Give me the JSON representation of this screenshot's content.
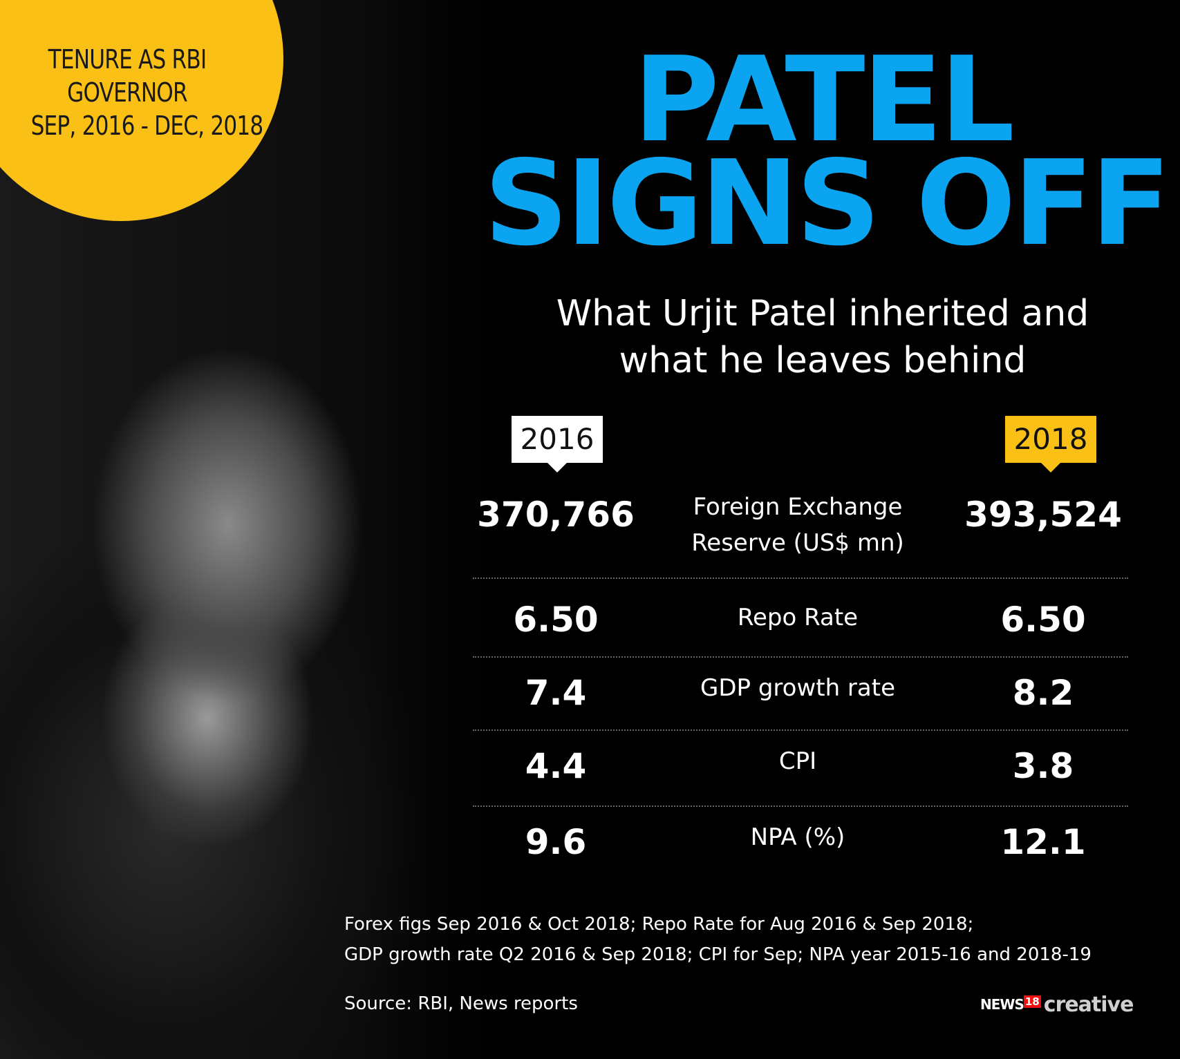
{
  "tenure": {
    "lines": [
      "TENURE AS RBI",
      "GOVERNOR",
      "SEP, 2016 - DEC, 2018"
    ]
  },
  "headline": {
    "line1": "PATEL",
    "line2": "SIGNS OFF"
  },
  "subhead": {
    "line1": "What Urjit Patel inherited and",
    "line2": "what he leaves behind"
  },
  "years": {
    "left": "2016",
    "right": "2018"
  },
  "rows": [
    {
      "label_line1": "Foreign Exchange",
      "label_line2": "Reserve (US$ mn)",
      "v2016": "370,766",
      "v2018": "393,524"
    },
    {
      "label_line1": "Repo Rate",
      "label_line2": "",
      "v2016": "6.50",
      "v2018": "6.50"
    },
    {
      "label_line1": "GDP growth rate",
      "label_line2": "",
      "v2016": "7.4",
      "v2018": "8.2"
    },
    {
      "label_line1": "CPI",
      "label_line2": "",
      "v2016": "4.4",
      "v2018": "3.8"
    },
    {
      "label_line1": "NPA (%)",
      "label_line2": "",
      "v2016": "9.6",
      "v2018": "12.1"
    }
  ],
  "notes": {
    "line1": "Forex figs Sep 2016 & Oct 2018; Repo Rate for Aug 2016 & Sep 2018;",
    "line2": "GDP growth rate Q2 2016 & Sep 2018; CPI for Sep; NPA year 2015-16 and 2018-19"
  },
  "source": "Source: RBI, News reports",
  "logo": {
    "news": "NEWS",
    "num": "18",
    "creative": "creative"
  },
  "colors": {
    "accent_blue": "#0aa4f0",
    "accent_yellow": "#fbc016",
    "background": "#000000"
  }
}
